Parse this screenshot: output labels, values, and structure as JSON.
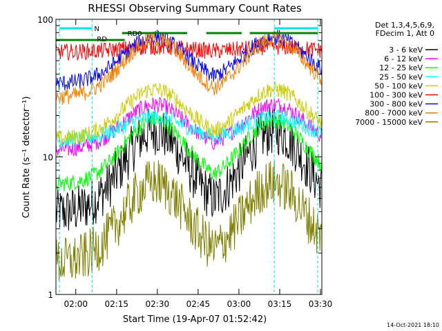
{
  "chart_data": {
    "type": "line",
    "title": "RHESSI Observing Summary Count Rates",
    "xlabel": "Start Time (19-Apr-07 01:52:42)",
    "ylabel": "Count Rate (s⁻¹ detector⁻¹)",
    "y_scale": "log",
    "ylim": [
      1,
      100
    ],
    "xlim": [
      "01:52:42",
      "03:30:30"
    ],
    "x_ticks": [
      "02:00",
      "02:15",
      "02:30",
      "02:45",
      "03:00",
      "03:15",
      "03:30"
    ],
    "y_ticks": [
      "1",
      "10",
      "100"
    ],
    "legend_position": "right",
    "legend_header": [
      "Det 1,3,4,5,6,9,",
      "FDecim 1, Att 0"
    ],
    "series": [
      {
        "name": "3 - 6 keV",
        "color": "#000000",
        "base": 3.9,
        "peak": 15.5
      },
      {
        "name": "6 - 12 keV",
        "color": "#ff00ff",
        "base": 11.2,
        "peak": 24
      },
      {
        "name": "12 - 25 keV",
        "color": "#00ff00",
        "base": 6.3,
        "peak": 18.5
      },
      {
        "name": "25 - 50 keV",
        "color": "#00ffff",
        "base": 13.2,
        "peak": 19.5
      },
      {
        "name": "50 - 100 keV",
        "color": "#cccc00",
        "base": 13.5,
        "peak": 31
      },
      {
        "name": "100 - 300 keV",
        "color": "#ff0000",
        "base": 58,
        "peak": 63
      },
      {
        "name": "300 - 800 keV",
        "color": "#0000ff",
        "base": 34,
        "peak": 74
      },
      {
        "name": "800 - 7000 keV",
        "color": "#ff8000",
        "base": 27,
        "peak": 72
      },
      {
        "name": "7000 - 15000 keV",
        "color": "#808000",
        "base": 1.7,
        "peak": 6.5
      }
    ],
    "peaks": [
      "02:29",
      "03:13"
    ],
    "annotations": [
      {
        "label": "N",
        "color": "#00e5ee"
      },
      {
        "label": "RD",
        "color": "#008000"
      },
      {
        "label": "RD0",
        "color": "#008000"
      }
    ],
    "attenuator_bars_color": "#008000",
    "night_marker_color": "#00e5ee",
    "footer": "14-Oct-2021 18:10"
  }
}
